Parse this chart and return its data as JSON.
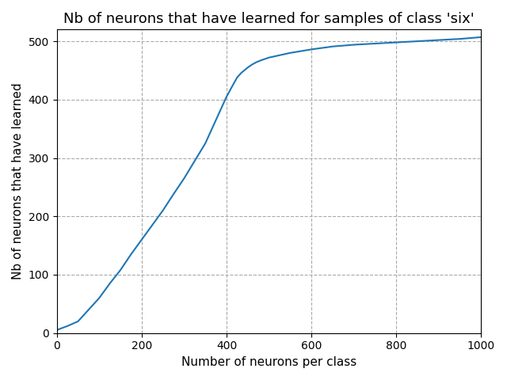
{
  "title": "Nb of neurons that have learned for samples of class 'six'",
  "xlabel": "Number of neurons per class",
  "ylabel": "Nb of neurons that have learned",
  "line_color": "#1f77b4",
  "line_width": 1.5,
  "xlim": [
    0,
    1000
  ],
  "ylim": [
    0,
    520
  ],
  "x_ticks": [
    0,
    200,
    400,
    600,
    800,
    1000
  ],
  "y_ticks": [
    0,
    100,
    200,
    300,
    400,
    500
  ],
  "grid": true,
  "grid_style": "--",
  "grid_color": "#aaaaaa",
  "x_data": [
    0,
    10,
    25,
    50,
    75,
    100,
    125,
    150,
    175,
    200,
    225,
    250,
    275,
    300,
    325,
    350,
    375,
    400,
    415,
    425,
    435,
    445,
    450,
    460,
    470,
    480,
    500,
    525,
    550,
    600,
    650,
    700,
    750,
    800,
    850,
    900,
    950,
    1000
  ],
  "y_data": [
    5,
    8,
    12,
    20,
    40,
    60,
    85,
    108,
    135,
    160,
    185,
    210,
    238,
    265,
    295,
    325,
    365,
    405,
    425,
    438,
    446,
    452,
    455,
    460,
    464,
    467,
    472,
    476,
    480,
    486,
    491,
    494,
    496,
    498,
    500,
    502,
    504,
    507
  ]
}
